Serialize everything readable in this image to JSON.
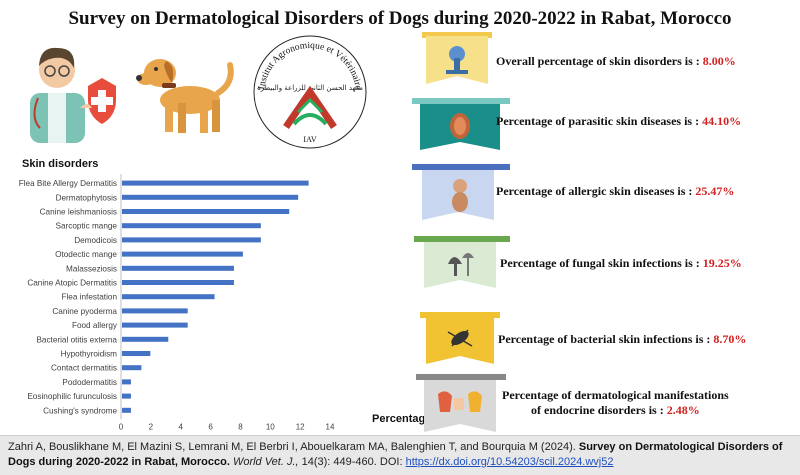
{
  "title": "Survey on Dermatological Disorders of Dogs during 2020-2022 in Rabat, Morocco",
  "logo": {
    "arc_text": "Institut Agronomique et Vétérinaire Hassan II",
    "arabic_text": "معهد الحسن الثاني للزراعة والبيطرة",
    "abbr": "IAV"
  },
  "chart_data": {
    "type": "bar",
    "orientation": "horizontal",
    "title": "",
    "ylabel": "Skin disorders",
    "xlabel": "Percentage",
    "xlim": [
      0,
      14
    ],
    "xticks": [
      0,
      2,
      4,
      6,
      8,
      10,
      12,
      14
    ],
    "categories": [
      "Flea Bite Allergy Dermatitis",
      "Dermatophytosis",
      "Canine leishmaniosis",
      "Sarcoptic mange",
      "Demodicois",
      "Otodectic mange",
      "Malasseziosis",
      "Canine Atopic Dermatitis",
      "Flea infestation",
      "Canine pyoderma",
      "Food allergy",
      "Bacterial otitis externa",
      "Hypothyroidism",
      "Contact dermatitis",
      "Pododermatitis",
      "Eosinophilic furunculosis",
      "Cushing's syndrome"
    ],
    "values": [
      12.5,
      11.8,
      11.2,
      9.3,
      9.3,
      8.1,
      7.5,
      7.5,
      6.2,
      4.4,
      4.4,
      3.1,
      1.9,
      1.3,
      0.6,
      0.6,
      0.6
    ],
    "bar_color": "#4472c4",
    "grid": false
  },
  "stats": [
    {
      "label": "Overall percentage of skin disorders is :",
      "value": "8.00%",
      "color": "#f2c94c",
      "icon": "microscope-icon"
    },
    {
      "label": "Percentage of parasitic skin diseases is :",
      "value": "44.10%",
      "color": "#1a8f8a",
      "icon": "tick-icon"
    },
    {
      "label": "Percentage of allergic skin diseases is :",
      "value": "25.47%",
      "color": "#4a6fbf",
      "icon": "allergy-icon"
    },
    {
      "label": "Percentage of fungal skin infections is :",
      "value": "19.25%",
      "color": "#6aa84f",
      "icon": "fungus-icon"
    },
    {
      "label": "Percentage of bacterial skin infections is :",
      "value": "8.70%",
      "color": "#f1c232",
      "icon": "bacteria-icon"
    },
    {
      "label_line1": "Percentage of dermatological manifestations",
      "label_line2": "of endocrine disorders is :",
      "value": "2.48%",
      "color": "#888888",
      "icon": "endocrine-icon"
    }
  ],
  "citation": {
    "authors": "Zahri A, Bouslikhane M, El Mazini S, Lemrani M, El Berbri I, Abouelkaram MA, Balenghien T, and Bourquia M (2024).",
    "article_title": "Survey on Dermatological Disorders of Dogs during 2020-2022 in Rabat, Morocco.",
    "journal": "World Vet. J.,",
    "volume": "14(3): 449-460. DOI:",
    "doi": "https://dx.doi.org/10.54203/scil.2024.wvj52"
  }
}
